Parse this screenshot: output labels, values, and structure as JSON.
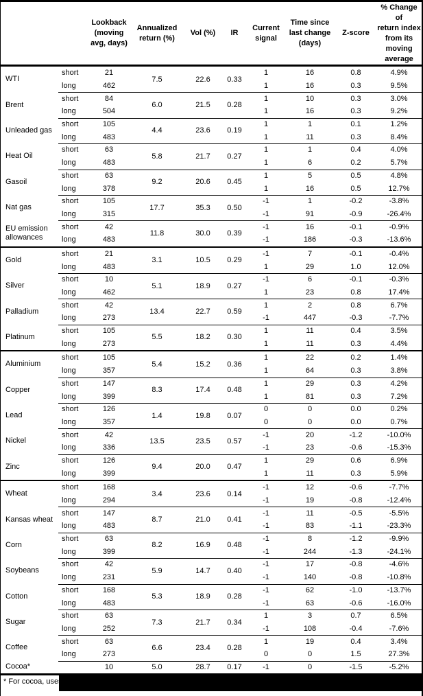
{
  "table": {
    "headers": {
      "lookback": "Lookback\n(moving\navg, days)",
      "annualized_return": "Annualized\nreturn (%)",
      "vol": "Vol (%)",
      "ir": "IR",
      "current_signal": "Current\nsignal",
      "time_since": "Time since\nlast change\n(days)",
      "z_score": "Z-score",
      "pct_change": "% Change of\nreturn index\nfrom its\nmoving\naverage"
    },
    "groups": [
      {
        "id": "energy",
        "commodities": [
          {
            "name": "WTI",
            "ret": "7.5",
            "vol": "22.6",
            "ir": "0.33",
            "rows": [
              {
                "term": "short",
                "lookback": "21",
                "signal": "1",
                "days": "16",
                "z": "0.8",
                "pct": "4.9%"
              },
              {
                "term": "long",
                "lookback": "462",
                "signal": "1",
                "days": "16",
                "z": "0.3",
                "pct": "9.5%"
              }
            ]
          },
          {
            "name": "Brent",
            "ret": "6.0",
            "vol": "21.5",
            "ir": "0.28",
            "rows": [
              {
                "term": "short",
                "lookback": "84",
                "signal": "1",
                "days": "10",
                "z": "0.3",
                "pct": "3.0%"
              },
              {
                "term": "long",
                "lookback": "504",
                "signal": "1",
                "days": "16",
                "z": "0.3",
                "pct": "9.2%"
              }
            ]
          },
          {
            "name": "Unleaded gas",
            "ret": "4.4",
            "vol": "23.6",
            "ir": "0.19",
            "rows": [
              {
                "term": "short",
                "lookback": "105",
                "signal": "1",
                "days": "1",
                "z": "0.1",
                "pct": "1.2%"
              },
              {
                "term": "long",
                "lookback": "483",
                "signal": "1",
                "days": "11",
                "z": "0.3",
                "pct": "8.4%"
              }
            ]
          },
          {
            "name": "Heat Oil",
            "ret": "5.8",
            "vol": "21.7",
            "ir": "0.27",
            "rows": [
              {
                "term": "short",
                "lookback": "63",
                "signal": "1",
                "days": "1",
                "z": "0.4",
                "pct": "4.0%"
              },
              {
                "term": "long",
                "lookback": "483",
                "signal": "1",
                "days": "6",
                "z": "0.2",
                "pct": "5.7%"
              }
            ]
          },
          {
            "name": "Gasoil",
            "ret": "9.2",
            "vol": "20.6",
            "ir": "0.45",
            "rows": [
              {
                "term": "short",
                "lookback": "63",
                "signal": "1",
                "days": "5",
                "z": "0.5",
                "pct": "4.8%"
              },
              {
                "term": "long",
                "lookback": "378",
                "signal": "1",
                "days": "16",
                "z": "0.5",
                "pct": "12.7%"
              }
            ]
          },
          {
            "name": "Nat gas",
            "ret": "17.7",
            "vol": "35.3",
            "ir": "0.50",
            "rows": [
              {
                "term": "short",
                "lookback": "105",
                "signal": "-1",
                "days": "1",
                "z": "-0.2",
                "pct": "-3.8%"
              },
              {
                "term": "long",
                "lookback": "315",
                "signal": "-1",
                "days": "91",
                "z": "-0.9",
                "pct": "-26.4%"
              }
            ]
          },
          {
            "name": "EU emission allowances",
            "ret": "11.8",
            "vol": "30.0",
            "ir": "0.39",
            "rows": [
              {
                "term": "short",
                "lookback": "42",
                "signal": "-1",
                "days": "16",
                "z": "-0.1",
                "pct": "-0.9%"
              },
              {
                "term": "long",
                "lookback": "483",
                "signal": "-1",
                "days": "186",
                "z": "-0.3",
                "pct": "-13.6%"
              }
            ]
          }
        ]
      },
      {
        "id": "precious-metals",
        "commodities": [
          {
            "name": "Gold",
            "ret": "3.1",
            "vol": "10.5",
            "ir": "0.29",
            "rows": [
              {
                "term": "short",
                "lookback": "21",
                "signal": "-1",
                "days": "7",
                "z": "-0.1",
                "pct": "-0.4%"
              },
              {
                "term": "long",
                "lookback": "483",
                "signal": "1",
                "days": "29",
                "z": "1.0",
                "pct": "12.0%"
              }
            ]
          },
          {
            "name": "Silver",
            "ret": "5.1",
            "vol": "18.9",
            "ir": "0.27",
            "rows": [
              {
                "term": "short",
                "lookback": "10",
                "signal": "-1",
                "days": "6",
                "z": "-0.1",
                "pct": "-0.3%"
              },
              {
                "term": "long",
                "lookback": "462",
                "signal": "1",
                "days": "23",
                "z": "0.8",
                "pct": "17.4%"
              }
            ]
          },
          {
            "name": "Palladium",
            "ret": "13.4",
            "vol": "22.7",
            "ir": "0.59",
            "rows": [
              {
                "term": "short",
                "lookback": "42",
                "signal": "1",
                "days": "2",
                "z": "0.8",
                "pct": "6.7%"
              },
              {
                "term": "long",
                "lookback": "273",
                "signal": "-1",
                "days": "447",
                "z": "-0.3",
                "pct": "-7.7%"
              }
            ]
          },
          {
            "name": "Platinum",
            "ret": "5.5",
            "vol": "18.2",
            "ir": "0.30",
            "rows": [
              {
                "term": "short",
                "lookback": "105",
                "signal": "1",
                "days": "11",
                "z": "0.4",
                "pct": "3.5%"
              },
              {
                "term": "long",
                "lookback": "273",
                "signal": "1",
                "days": "11",
                "z": "0.3",
                "pct": "4.4%"
              }
            ]
          }
        ]
      },
      {
        "id": "base-metals",
        "commodities": [
          {
            "name": "Aluminium",
            "ret": "5.4",
            "vol": "15.2",
            "ir": "0.36",
            "rows": [
              {
                "term": "short",
                "lookback": "105",
                "signal": "1",
                "days": "22",
                "z": "0.2",
                "pct": "1.4%"
              },
              {
                "term": "long",
                "lookback": "357",
                "signal": "1",
                "days": "64",
                "z": "0.3",
                "pct": "3.8%"
              }
            ]
          },
          {
            "name": "Copper",
            "ret": "8.3",
            "vol": "17.4",
            "ir": "0.48",
            "rows": [
              {
                "term": "short",
                "lookback": "147",
                "signal": "1",
                "days": "29",
                "z": "0.3",
                "pct": "4.2%"
              },
              {
                "term": "long",
                "lookback": "399",
                "signal": "1",
                "days": "81",
                "z": "0.3",
                "pct": "7.2%"
              }
            ]
          },
          {
            "name": "Lead",
            "ret": "1.4",
            "vol": "19.8",
            "ir": "0.07",
            "rows": [
              {
                "term": "short",
                "lookback": "126",
                "signal": "0",
                "days": "0",
                "z": "0.0",
                "pct": "0.2%"
              },
              {
                "term": "long",
                "lookback": "357",
                "signal": "0",
                "days": "0",
                "z": "0.0",
                "pct": "0.7%"
              }
            ]
          },
          {
            "name": "Nickel",
            "ret": "13.5",
            "vol": "23.5",
            "ir": "0.57",
            "rows": [
              {
                "term": "short",
                "lookback": "42",
                "signal": "-1",
                "days": "20",
                "z": "-1.2",
                "pct": "-10.0%"
              },
              {
                "term": "long",
                "lookback": "336",
                "signal": "-1",
                "days": "23",
                "z": "-0.6",
                "pct": "-15.3%"
              }
            ]
          },
          {
            "name": "Zinc",
            "ret": "9.4",
            "vol": "20.0",
            "ir": "0.47",
            "rows": [
              {
                "term": "short",
                "lookback": "126",
                "signal": "1",
                "days": "29",
                "z": "0.6",
                "pct": "6.9%"
              },
              {
                "term": "long",
                "lookback": "399",
                "signal": "1",
                "days": "11",
                "z": "0.3",
                "pct": "5.9%"
              }
            ]
          }
        ]
      },
      {
        "id": "agriculture",
        "commodities": [
          {
            "name": "Wheat",
            "ret": "3.4",
            "vol": "23.6",
            "ir": "0.14",
            "rows": [
              {
                "term": "short",
                "lookback": "168",
                "signal": "-1",
                "days": "12",
                "z": "-0.6",
                "pct": "-7.7%"
              },
              {
                "term": "long",
                "lookback": "294",
                "signal": "-1",
                "days": "19",
                "z": "-0.8",
                "pct": "-12.4%"
              }
            ]
          },
          {
            "name": "Kansas wheat",
            "ret": "8.7",
            "vol": "21.0",
            "ir": "0.41",
            "rows": [
              {
                "term": "short",
                "lookback": "147",
                "signal": "-1",
                "days": "11",
                "z": "-0.5",
                "pct": "-5.5%"
              },
              {
                "term": "long",
                "lookback": "483",
                "signal": "-1",
                "days": "83",
                "z": "-1.1",
                "pct": "-23.3%"
              }
            ]
          },
          {
            "name": "Corn",
            "ret": "8.2",
            "vol": "16.9",
            "ir": "0.48",
            "rows": [
              {
                "term": "short",
                "lookback": "63",
                "signal": "-1",
                "days": "8",
                "z": "-1.2",
                "pct": "-9.9%"
              },
              {
                "term": "long",
                "lookback": "399",
                "signal": "-1",
                "days": "244",
                "z": "-1.3",
                "pct": "-24.1%"
              }
            ]
          },
          {
            "name": "Soybeans",
            "ret": "5.9",
            "vol": "14.7",
            "ir": "0.40",
            "rows": [
              {
                "term": "short",
                "lookback": "42",
                "signal": "-1",
                "days": "17",
                "z": "-0.8",
                "pct": "-4.6%"
              },
              {
                "term": "long",
                "lookback": "231",
                "signal": "-1",
                "days": "140",
                "z": "-0.8",
                "pct": "-10.8%"
              }
            ]
          },
          {
            "name": "Cotton",
            "ret": "5.3",
            "vol": "18.9",
            "ir": "0.28",
            "rows": [
              {
                "term": "short",
                "lookback": "168",
                "signal": "-1",
                "days": "62",
                "z": "-1.0",
                "pct": "-13.7%"
              },
              {
                "term": "long",
                "lookback": "483",
                "signal": "-1",
                "days": "63",
                "z": "-0.6",
                "pct": "-16.0%"
              }
            ]
          },
          {
            "name": "Sugar",
            "ret": "7.3",
            "vol": "21.7",
            "ir": "0.34",
            "rows": [
              {
                "term": "short",
                "lookback": "63",
                "signal": "1",
                "days": "3",
                "z": "0.7",
                "pct": "6.5%"
              },
              {
                "term": "long",
                "lookback": "252",
                "signal": "-1",
                "days": "108",
                "z": "-0.4",
                "pct": "-7.6%"
              }
            ]
          },
          {
            "name": "Coffee",
            "ret": "6.6",
            "vol": "23.4",
            "ir": "0.28",
            "rows": [
              {
                "term": "short",
                "lookback": "63",
                "signal": "1",
                "days": "19",
                "z": "0.4",
                "pct": "3.4%"
              },
              {
                "term": "long",
                "lookback": "273",
                "signal": "0",
                "days": "0",
                "z": "1.5",
                "pct": "27.3%"
              }
            ]
          },
          {
            "name": "Cocoa*",
            "ret": "5.0",
            "vol": "28.7",
            "ir": "0.17",
            "rows": [
              {
                "term": "",
                "lookback": "10",
                "signal": "-1",
                "days": "0",
                "z": "-1.5",
                "pct": "-5.2%"
              }
            ]
          }
        ]
      }
    ]
  },
  "footnote": {
    "visible_text": "* For cocoa, uses o"
  },
  "colors": {
    "text": "#000000",
    "background": "#ffffff",
    "border": "#000000",
    "redaction": "#000000"
  }
}
